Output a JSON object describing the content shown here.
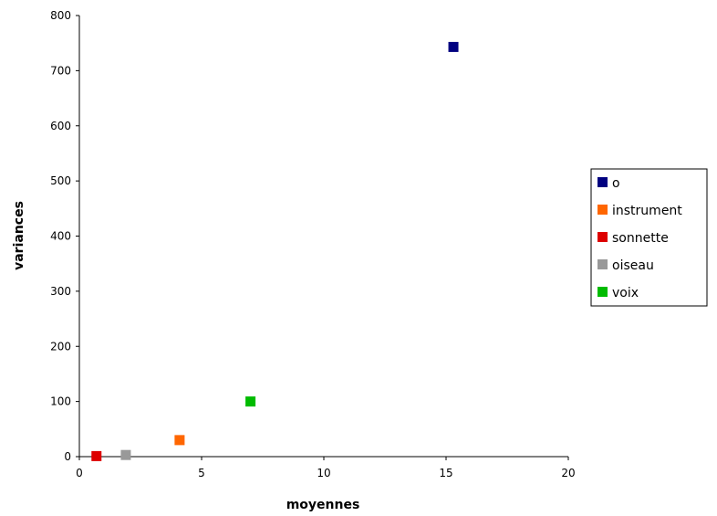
{
  "chart_data": {
    "type": "scatter",
    "title": "",
    "xlabel": "moyennes",
    "ylabel": "variances",
    "xlim": [
      0,
      20
    ],
    "ylim": [
      0,
      800
    ],
    "xticks": [
      0,
      5,
      10,
      15,
      20
    ],
    "yticks": [
      0,
      100,
      200,
      300,
      400,
      500,
      600,
      700,
      800
    ],
    "grid": false,
    "legend_position": "right",
    "series": [
      {
        "name": "o",
        "color": "#000080",
        "points": [
          [
            15.3,
            743
          ]
        ]
      },
      {
        "name": "instrument",
        "color": "#ff6600",
        "points": [
          [
            4.1,
            30
          ]
        ]
      },
      {
        "name": "sonnette",
        "color": "#dd0000",
        "points": [
          [
            0.7,
            1
          ]
        ]
      },
      {
        "name": "oiseau",
        "color": "#999999",
        "points": [
          [
            1.9,
            3
          ]
        ]
      },
      {
        "name": "voix",
        "color": "#00bb00",
        "points": [
          [
            7.0,
            100
          ]
        ]
      }
    ]
  }
}
